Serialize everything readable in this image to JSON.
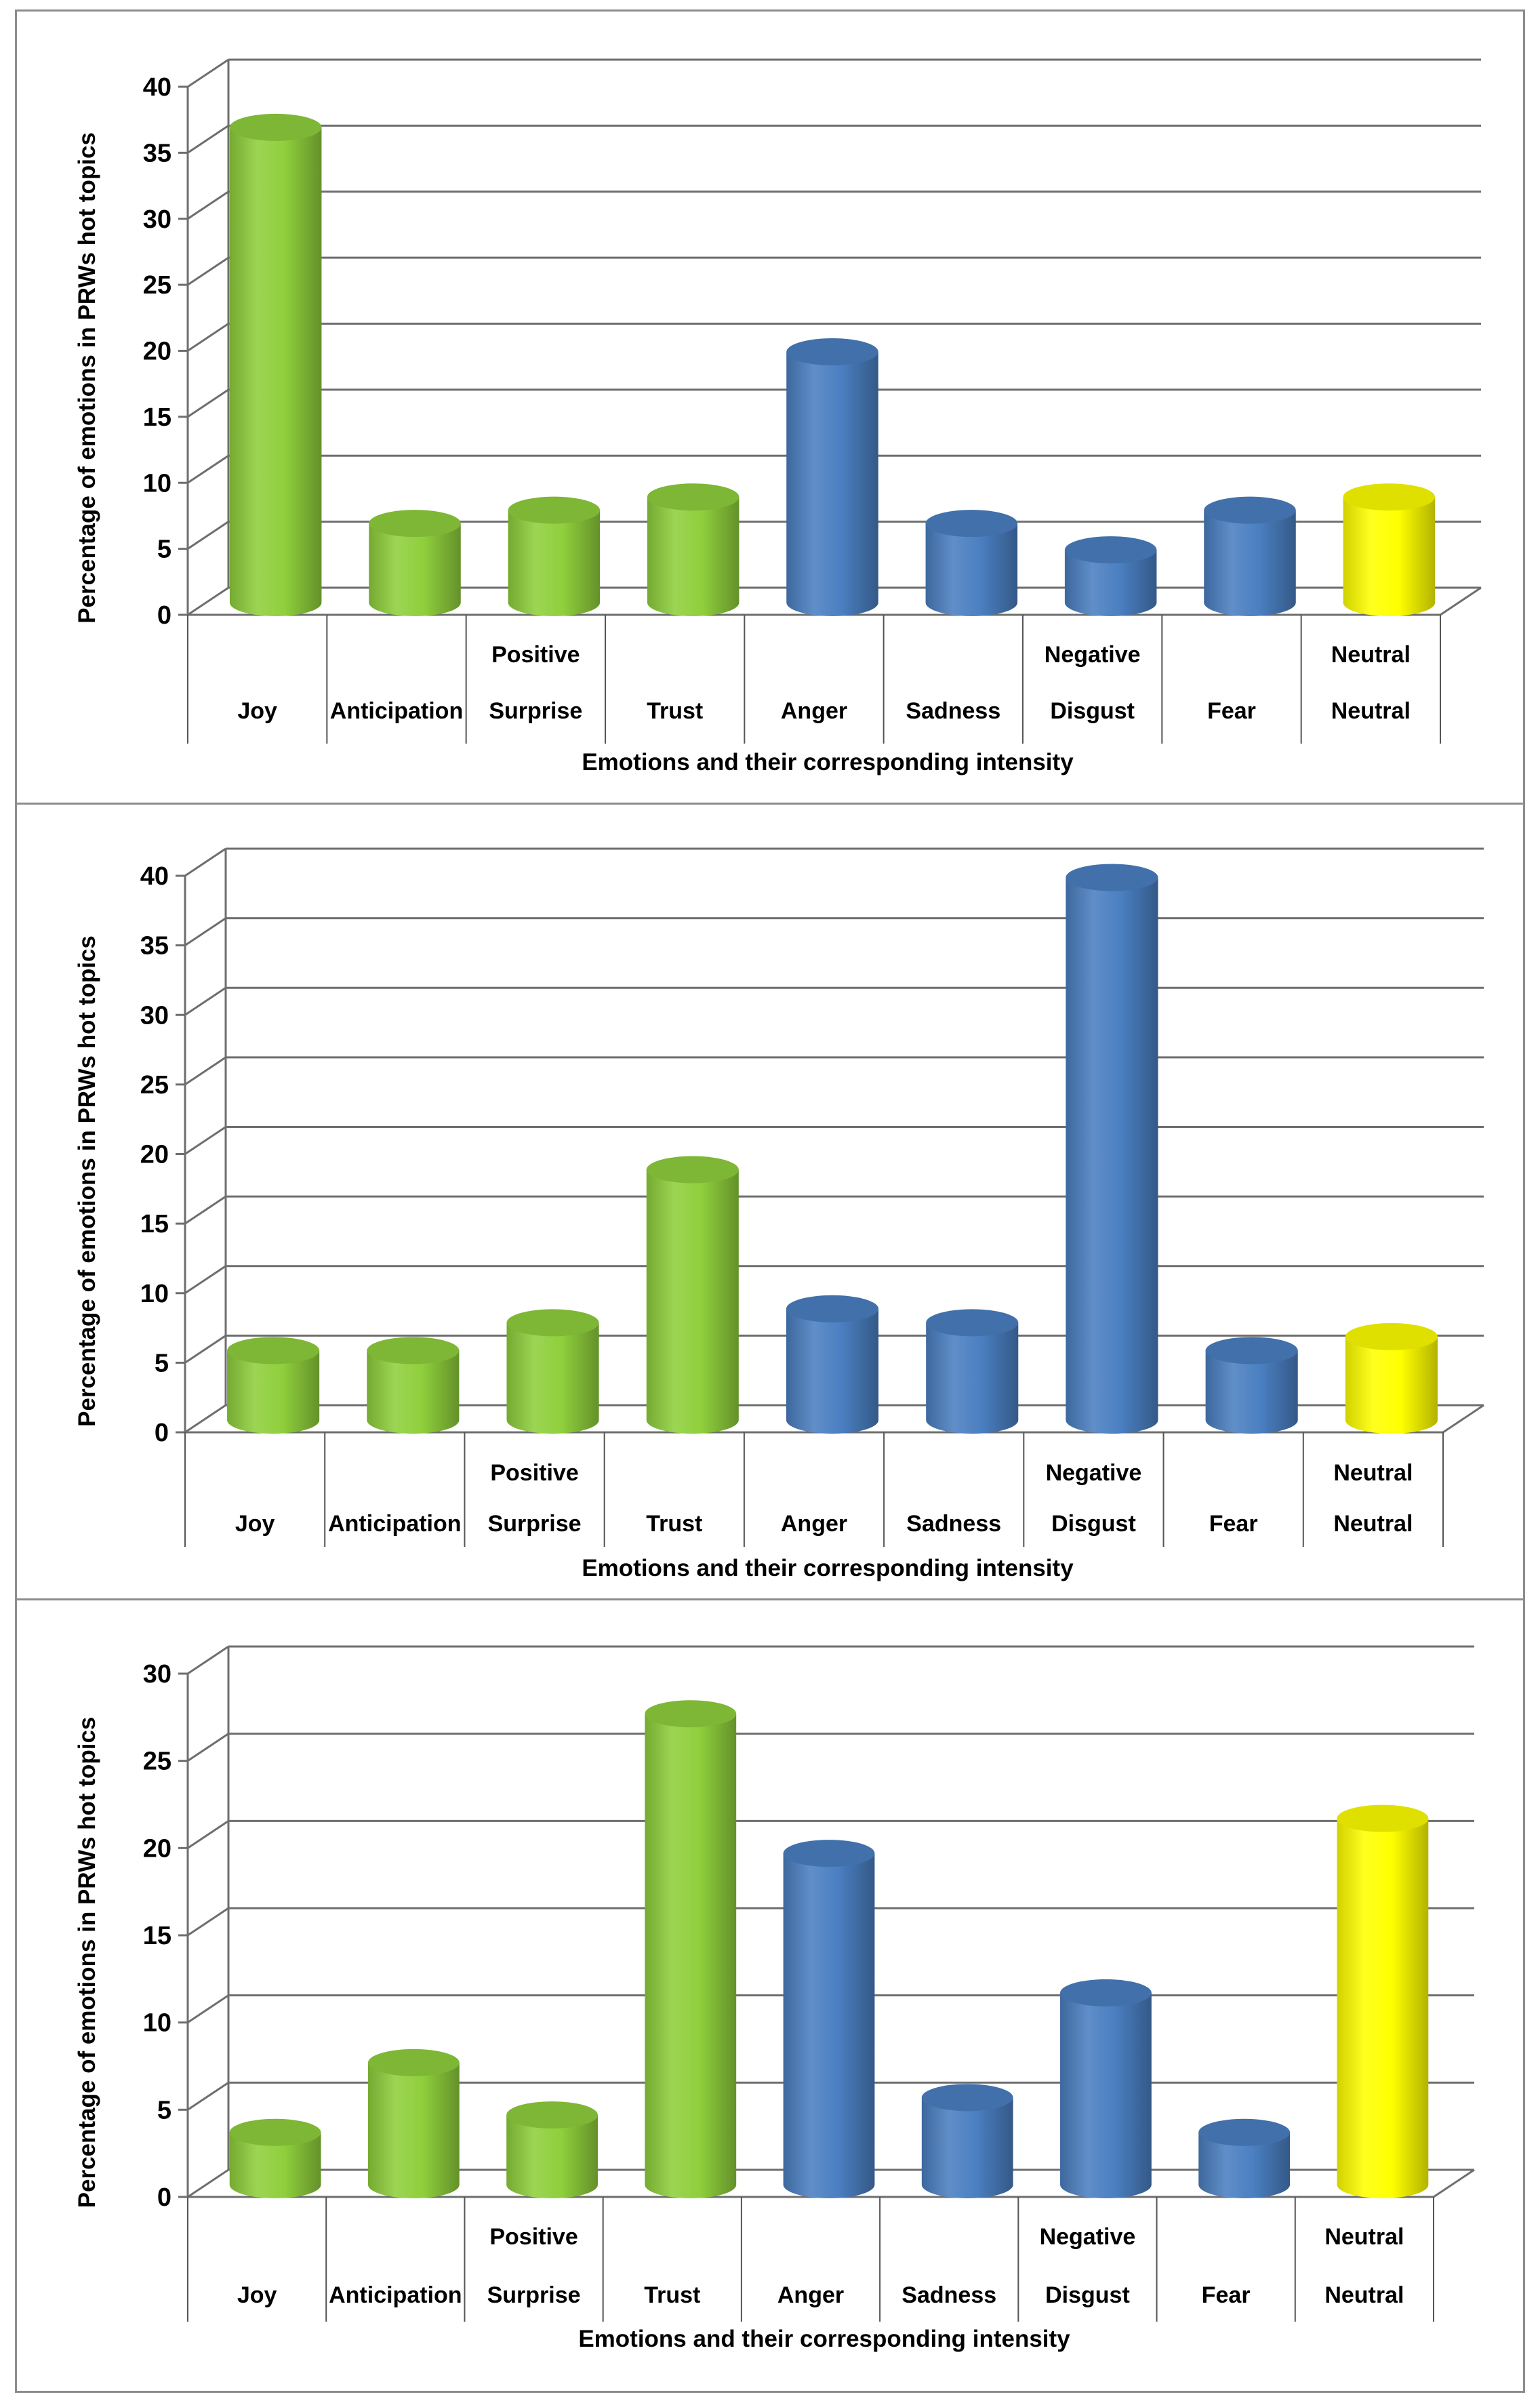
{
  "colors": {
    "positive": "#8fcf3c",
    "negative": "#4a7fc1",
    "neutral": "#ffff00",
    "grid": "#6e6e6e"
  },
  "chart_data": [
    {
      "type": "bar",
      "title": "",
      "xlabel": "Emotions and their corresponding intensity",
      "ylabel": "Percentage of emotions in PRWs hot topics",
      "ylim": [
        0,
        40
      ],
      "yticks": [
        0,
        5,
        10,
        15,
        20,
        25,
        30,
        35,
        40
      ],
      "grid": true,
      "categories": [
        "Joy",
        "Anticipation",
        "Surprise",
        "Trust",
        "Anger",
        "Sadness",
        "Disgust",
        "Fear",
        "Neutral"
      ],
      "category_groups": [
        {
          "label": "Positive",
          "members": [
            "Joy",
            "Anticipation",
            "Surprise",
            "Trust"
          ]
        },
        {
          "label": "Negative",
          "members": [
            "Anger",
            "Sadness",
            "Disgust",
            "Fear"
          ]
        },
        {
          "label": "Neutral",
          "members": [
            "Neutral"
          ]
        }
      ],
      "values": [
        36,
        6,
        7,
        8,
        19,
        6,
        4,
        7,
        8
      ]
    },
    {
      "type": "bar",
      "title": "",
      "xlabel": "Emotions and their corresponding intensity",
      "ylabel": "Percentage of emotions in PRWs hot topics",
      "ylim": [
        0,
        40
      ],
      "yticks": [
        0,
        5,
        10,
        15,
        20,
        25,
        30,
        35,
        40
      ],
      "grid": true,
      "categories": [
        "Joy",
        "Anticipation",
        "Surprise",
        "Trust",
        "Anger",
        "Sadness",
        "Disgust",
        "Fear",
        "Neutral"
      ],
      "category_groups": [
        {
          "label": "Positive",
          "members": [
            "Joy",
            "Anticipation",
            "Surprise",
            "Trust"
          ]
        },
        {
          "label": "Negative",
          "members": [
            "Anger",
            "Sadness",
            "Disgust",
            "Fear"
          ]
        },
        {
          "label": "Neutral",
          "members": [
            "Neutral"
          ]
        }
      ],
      "values": [
        5,
        5,
        7,
        18,
        8,
        7,
        39,
        5,
        6
      ]
    },
    {
      "type": "bar",
      "title": "",
      "xlabel": "Emotions and their corresponding intensity",
      "ylabel": "Percentage of emotions in PRWs hot topics",
      "ylim": [
        0,
        30
      ],
      "yticks": [
        0,
        5,
        10,
        15,
        20,
        25,
        30
      ],
      "grid": true,
      "categories": [
        "Joy",
        "Anticipation",
        "Surprise",
        "Trust",
        "Anger",
        "Sadness",
        "Disgust",
        "Fear",
        "Neutral"
      ],
      "category_groups": [
        {
          "label": "Positive",
          "members": [
            "Joy",
            "Anticipation",
            "Surprise",
            "Trust"
          ]
        },
        {
          "label": "Negative",
          "members": [
            "Anger",
            "Sadness",
            "Disgust",
            "Fear"
          ]
        },
        {
          "label": "Neutral",
          "members": [
            "Neutral"
          ]
        }
      ],
      "values": [
        3,
        7,
        4,
        27,
        19,
        5,
        11,
        3,
        21
      ]
    }
  ]
}
